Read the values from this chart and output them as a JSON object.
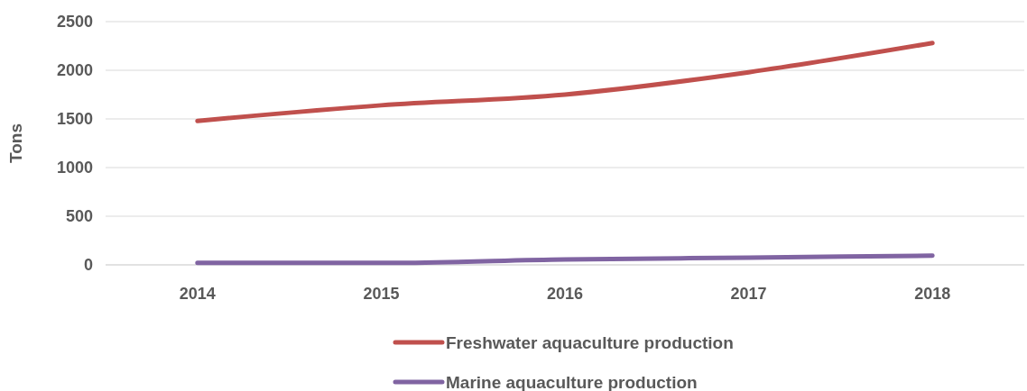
{
  "chart_data": {
    "type": "line",
    "ylabel": "Tons",
    "categories": [
      "2014",
      "2015",
      "2016",
      "2017",
      "2018"
    ],
    "series": [
      {
        "name": "Freshwater aquaculture production",
        "color": "#c0504d",
        "values": [
          1480,
          1640,
          1750,
          1980,
          2280
        ]
      },
      {
        "name": "Marine aquaculture production",
        "color": "#8064a2",
        "values": [
          20,
          20,
          55,
          75,
          95
        ]
      }
    ],
    "ylim": [
      0,
      2500
    ],
    "yticks": [
      0,
      500,
      1000,
      1500,
      2000,
      2500
    ],
    "grid": "y",
    "legend": "bottom",
    "marker": "none",
    "line_style": "solid"
  }
}
